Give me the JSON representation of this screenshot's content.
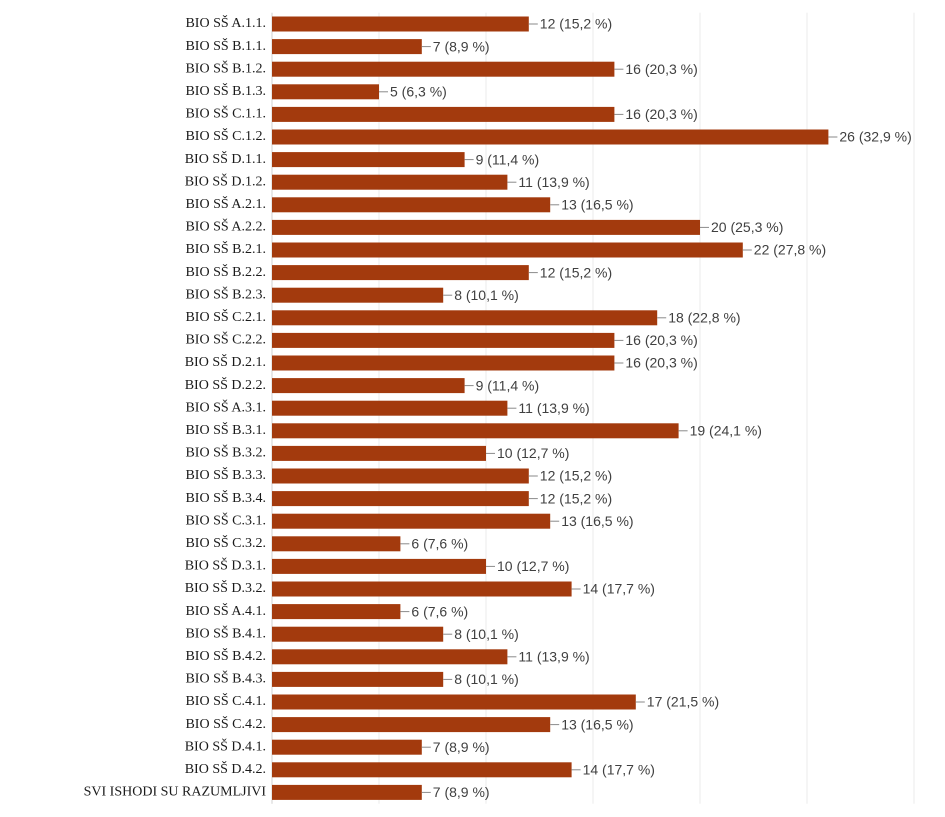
{
  "chart_data": {
    "type": "bar",
    "orientation": "horizontal",
    "bar_color": "#a33a0d",
    "xlim": [
      0,
      26
    ],
    "grid": true,
    "legend": "none",
    "title": "",
    "xlabel": "",
    "ylabel": "",
    "categories": [
      "BIO SŠ A.1.1.",
      "BIO SŠ B.1.1.",
      "BIO SŠ B.1.2.",
      "BIO SŠ B.1.3.",
      "BIO SŠ C.1.1.",
      "BIO SŠ C.1.2.",
      "BIO SŠ D.1.1.",
      "BIO SŠ D.1.2.",
      "BIO SŠ A.2.1.",
      "BIO SŠ A.2.2.",
      "BIO SŠ B.2.1.",
      "BIO SŠ B.2.2.",
      "BIO SŠ B.2.3.",
      "BIO SŠ C.2.1.",
      "BIO SŠ C.2.2.",
      "BIO SŠ D.2.1.",
      "BIO SŠ D.2.2.",
      "BIO SŠ A.3.1.",
      "BIO SŠ B.3.1.",
      "BIO SŠ B.3.2.",
      "BIO SŠ B.3.3.",
      "BIO SŠ B.3.4.",
      "BIO SŠ C.3.1.",
      "BIO SŠ C.3.2.",
      "BIO SŠ D.3.1.",
      "BIO SŠ D.3.2.",
      "BIO SŠ A.4.1.",
      "BIO SŠ B.4.1.",
      "BIO SŠ B.4.2.",
      "BIO SŠ B.4.3.",
      "BIO SŠ C.4.1.",
      "BIO SŠ C.4.2.",
      "BIO SŠ D.4.1.",
      "BIO SŠ D.4.2.",
      "SVI ISHODI SU RAZUMLJIVI"
    ],
    "values": [
      12,
      7,
      16,
      5,
      16,
      26,
      9,
      11,
      13,
      20,
      22,
      12,
      8,
      18,
      16,
      16,
      9,
      11,
      19,
      10,
      12,
      12,
      13,
      6,
      10,
      14,
      6,
      8,
      11,
      8,
      17,
      13,
      7,
      14,
      7
    ],
    "data_labels": [
      "12 (15,2 %)",
      "7 (8,9 %)",
      "16 (20,3 %)",
      "5 (6,3 %)",
      "16 (20,3 %)",
      "26 (32,9 %)",
      "9 (11,4 %)",
      "11 (13,9 %)",
      "13 (16,5 %)",
      "20 (25,3 %)",
      "22 (27,8 %)",
      "12 (15,2 %)",
      "8 (10,1 %)",
      "18 (22,8 %)",
      "16 (20,3 %)",
      "16 (20,3 %)",
      "9 (11,4 %)",
      "11 (13,9 %)",
      "19 (24,1 %)",
      "10 (12,7 %)",
      "12 (15,2 %)",
      "12 (15,2 %)",
      "13 (16,5 %)",
      "6 (7,6 %)",
      "10 (12,7 %)",
      "14 (17,7 %)",
      "6 (7,6 %)",
      "8 (10,1 %)",
      "11 (13,9 %)",
      "8 (10,1 %)",
      "17 (21,5 %)",
      "13 (16,5 %)",
      "7 (8,9 %)",
      "14 (17,7 %)",
      "7 (8,9 %)"
    ]
  }
}
